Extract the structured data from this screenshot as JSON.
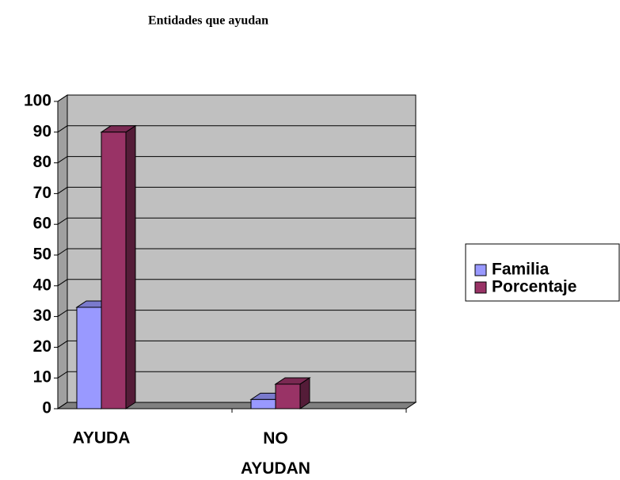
{
  "chart_data": {
    "type": "bar3d",
    "title": "Entidades que ayudan",
    "categories": [
      "AYUDA",
      "NO AYUDAN"
    ],
    "series": [
      {
        "name": "Familia",
        "color": "#9999ff",
        "values": [
          33,
          3
        ]
      },
      {
        "name": "Porcentaje",
        "color": "#993366",
        "values": [
          90,
          8
        ]
      }
    ],
    "ylim": [
      0,
      100
    ],
    "yticks": [
      0,
      10,
      20,
      30,
      40,
      50,
      60,
      70,
      80,
      90,
      100
    ],
    "grid": true,
    "legend": "right"
  }
}
